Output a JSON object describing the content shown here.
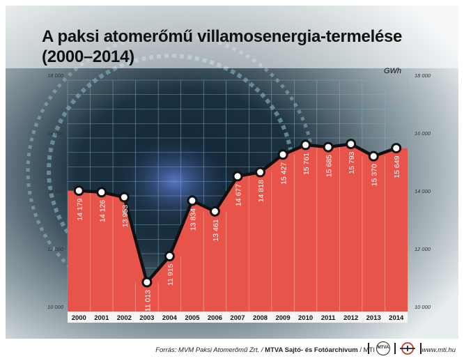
{
  "title_line1": "A paksi atomerőmű villamosenergia-termelése",
  "title_line2": "(2000–2014)",
  "unit": "GWh",
  "colors": {
    "area": "#e9544a",
    "line": "#111111",
    "point_fill": "#ffffff",
    "grid": "#7fb2c8"
  },
  "chart_data": {
    "type": "area",
    "title": "A paksi atomerőmű villamosenergia-termelése (2000–2014)",
    "ylabel": "GWh",
    "x": [
      "2000",
      "2001",
      "2002",
      "2003",
      "2004",
      "2005",
      "2006",
      "2007",
      "2008",
      "2009",
      "2010",
      "2011",
      "2012",
      "2013",
      "2014"
    ],
    "values": [
      14179,
      14126,
      13953,
      11013,
      11915,
      13834,
      13461,
      14677,
      14818,
      15427,
      15761,
      15685,
      15793,
      15370,
      15649
    ],
    "value_labels": [
      "14 179",
      "14 126",
      "13 953",
      "11 013",
      "11 915",
      "13 834",
      "13 461",
      "14 677",
      "14 818",
      "15 427",
      "15 761",
      "15 685",
      "15 793",
      "15 370",
      "15 649"
    ],
    "ylim": [
      10000,
      18000
    ],
    "yticks": [
      10000,
      12000,
      14000,
      16000,
      18000
    ],
    "ytick_labels": [
      "10 000",
      "12 000",
      "14 000",
      "16 000",
      "18 000"
    ],
    "grid": true
  },
  "footer": {
    "source_prefix": "Forrás: MVM Paksi Atomerőmű Zrt. / ",
    "source_bold": "MTVA Sajtó- és Fotóarchívum",
    "source_suffix": " / MTI",
    "logo_text": "MTVA",
    "website": "www.mti.hu"
  }
}
